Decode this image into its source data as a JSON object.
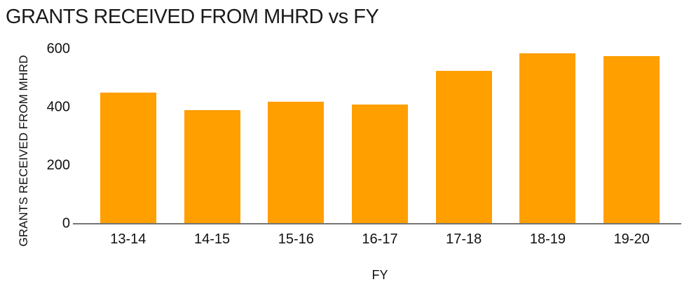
{
  "chart_data": {
    "type": "bar",
    "title": "GRANTS RECEIVED FROM MHRD vs FY",
    "categories": [
      "13-14",
      "14-15",
      "15-16",
      "16-17",
      "17-18",
      "18-19",
      "19-20"
    ],
    "values": [
      450,
      390,
      420,
      410,
      525,
      585,
      575
    ],
    "xlabel": "FY",
    "ylabel": "GRANTS RECEIVED FROM MHRD",
    "ylim": [
      0,
      600
    ],
    "yticks": [
      0,
      200,
      400,
      600
    ],
    "grid": false,
    "legend_position": "none",
    "bar_color": "#FF9F00",
    "axis_line_color": "#757575",
    "text_color": "#1a1a1a",
    "background_color": "#ffffff"
  }
}
